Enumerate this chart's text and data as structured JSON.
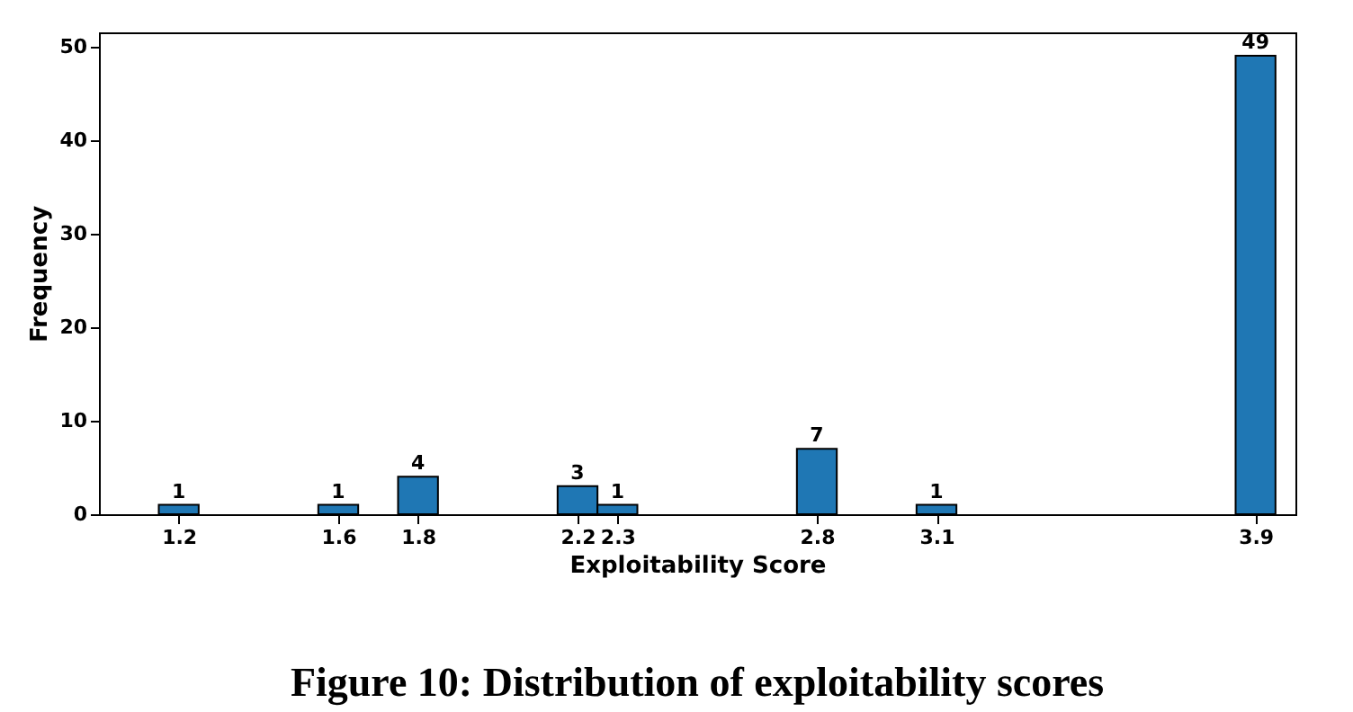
{
  "chart_data": {
    "type": "bar",
    "title": "Figure 10: Distribution of exploitability scores",
    "xlabel": "Exploitability Score",
    "ylabel": "Frequency",
    "x": [
      1.2,
      1.6,
      1.8,
      2.2,
      2.3,
      2.8,
      3.1,
      3.9
    ],
    "values": [
      1,
      1,
      4,
      3,
      1,
      7,
      1,
      49
    ],
    "color": "#1f77b4",
    "xlim": [
      1.0,
      4.0
    ],
    "xticks": [
      1.2,
      1.6,
      1.8,
      2.2,
      2.3,
      2.8,
      3.1,
      3.9
    ],
    "ylim": [
      0,
      51.5
    ],
    "yticks": [
      0,
      10,
      20,
      30,
      40,
      50
    ],
    "data_labels": true,
    "grid": false
  }
}
